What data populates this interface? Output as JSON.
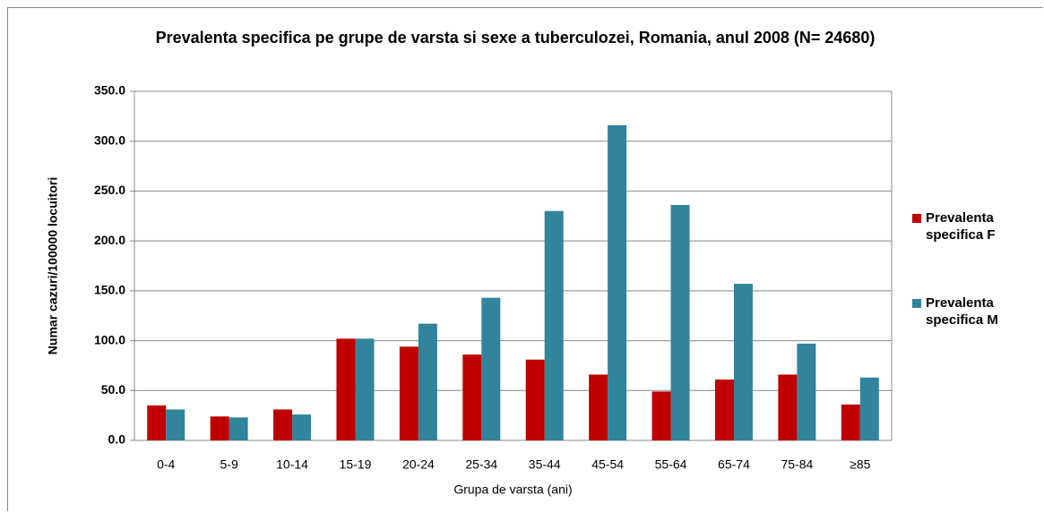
{
  "chart_data": {
    "type": "bar",
    "title": "Prevalenta specifica pe grupe de varsta si sexe a tuberculozei, Romania, anul 2008 (N= 24680)",
    "x_label": "Grupa de varsta (ani)",
    "y_label": "Numar cazuri/100000 locuitori",
    "categories": [
      "0-4",
      "5-9",
      "10-14",
      "15-19",
      "20-24",
      "25-34",
      "35-44",
      "45-54",
      "55-64",
      "65-74",
      "75-84",
      "≥85"
    ],
    "series": [
      {
        "name": "Prevalenta specifica F",
        "color": "#c00000",
        "values": [
          35,
          24,
          31,
          102,
          94,
          86,
          81,
          66,
          49,
          61,
          66,
          36
        ]
      },
      {
        "name": "Prevalenta specifica M",
        "color": "#31849b",
        "values": [
          31,
          23,
          26,
          102,
          117,
          143,
          230,
          316,
          236,
          157,
          97,
          63
        ]
      }
    ],
    "ylim": [
      0,
      350
    ],
    "yticks": [
      {
        "value": 0,
        "label": "0.0"
      },
      {
        "value": 50,
        "label": "50.0"
      },
      {
        "value": 100,
        "label": "100.0"
      },
      {
        "value": 150,
        "label": "150.0"
      },
      {
        "value": 200,
        "label": "200.0"
      },
      {
        "value": 250,
        "label": "250.0"
      },
      {
        "value": 300,
        "label": "300.0"
      },
      {
        "value": 350,
        "label": "350.0"
      }
    ],
    "grid": true,
    "legend": "right"
  }
}
